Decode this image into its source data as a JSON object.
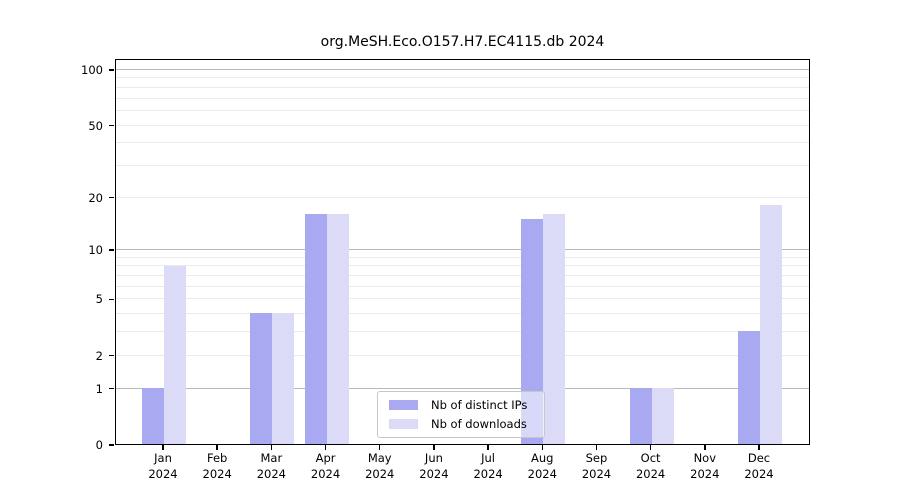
{
  "chart_data": {
    "type": "bar",
    "title": "org.MeSH.Eco.O157.H7.EC4115.db 2024",
    "categories": [
      "Jan",
      "Feb",
      "Mar",
      "Apr",
      "May",
      "Jun",
      "Jul",
      "Aug",
      "Sep",
      "Oct",
      "Nov",
      "Dec"
    ],
    "year_label": "2024",
    "series": [
      {
        "name": "Nb of distinct IPs",
        "color": "#a9a9f2",
        "values": [
          1,
          0,
          4,
          16,
          0,
          0,
          0,
          15,
          0,
          1,
          0,
          3
        ]
      },
      {
        "name": "Nb of downloads",
        "color": "#dbdbf8",
        "values": [
          8,
          0,
          4,
          16,
          0,
          0,
          0,
          16,
          0,
          1,
          0,
          18
        ]
      }
    ],
    "yscale": "log1p",
    "yticks": [
      0,
      1,
      2,
      5,
      10,
      20,
      50,
      100
    ],
    "ylim": [
      0,
      114
    ],
    "grid": true,
    "legend_position": "lower-center",
    "colors": {
      "grid_minor": "#ebebeb",
      "grid_major": "#b8b8b8",
      "axis": "#000000",
      "legend_border": "#c7c7c7",
      "background": "#ffffff"
    }
  }
}
